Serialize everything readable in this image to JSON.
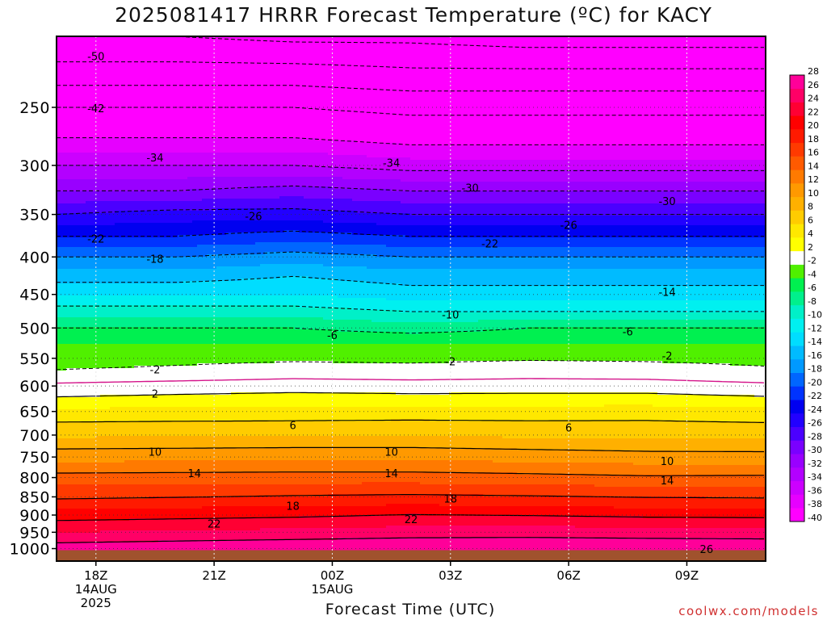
{
  "chart_data": {
    "type": "heatmap",
    "title": "2025081417 HRRR Forecast Temperature (ºC) for KACY",
    "xlabel": "Forecast Time (UTC)",
    "ylabel": "",
    "x_ticks": [
      {
        "hour": 0,
        "lines": [
          "18Z",
          "14AUG",
          "2025"
        ]
      },
      {
        "hour": 3,
        "lines": [
          "21Z"
        ]
      },
      {
        "hour": 6,
        "lines": [
          "00Z",
          "15AUG"
        ]
      },
      {
        "hour": 9,
        "lines": [
          "03Z"
        ]
      },
      {
        "hour": 12,
        "lines": [
          "06Z"
        ]
      },
      {
        "hour": 15,
        "lines": [
          "09Z"
        ]
      }
    ],
    "x_range_hours": [
      -1,
      17
    ],
    "pressure_ticks": [
      250,
      300,
      350,
      400,
      450,
      500,
      550,
      600,
      650,
      700,
      750,
      800,
      850,
      900,
      950,
      1000
    ],
    "pressure_range": [
      200,
      1040
    ],
    "levels_hpa": [
      200,
      225,
      250,
      275,
      300,
      325,
      350,
      375,
      400,
      425,
      450,
      475,
      500,
      525,
      550,
      575,
      600,
      625,
      650,
      675,
      700,
      725,
      750,
      775,
      800,
      825,
      850,
      875,
      900,
      925,
      950,
      975,
      1000,
      1013
    ],
    "times_hours": [
      -1,
      2,
      5,
      8,
      11,
      14,
      17
    ],
    "temperature_c": [
      [
        -54,
        -54,
        -55,
        -55,
        -56,
        -56,
        -56
      ],
      [
        -48,
        -48,
        -48,
        -49,
        -49,
        -49,
        -49
      ],
      [
        -42,
        -42,
        -42,
        -43,
        -43,
        -43,
        -43
      ],
      [
        -38,
        -38,
        -38,
        -39,
        -39,
        -39,
        -39
      ],
      [
        -34,
        -34,
        -34,
        -35,
        -35,
        -35,
        -35
      ],
      [
        -30,
        -30,
        -29,
        -30,
        -30,
        -30,
        -30
      ],
      [
        -26,
        -25,
        -25,
        -26,
        -26,
        -26,
        -26
      ],
      [
        -22,
        -22,
        -21,
        -22,
        -22,
        -22,
        -22
      ],
      [
        -18,
        -18,
        -17,
        -18,
        -18,
        -18,
        -18
      ],
      [
        -15,
        -15,
        -14,
        -15,
        -15,
        -15,
        -15
      ],
      [
        -12,
        -12,
        -12,
        -13,
        -13,
        -13,
        -13
      ],
      [
        -9,
        -9,
        -9,
        -10,
        -10,
        -10,
        -10
      ],
      [
        -6,
        -6,
        -6,
        -7,
        -6,
        -6,
        -6
      ],
      [
        -4,
        -4,
        -4,
        -4,
        -4,
        -4,
        -4
      ],
      [
        -2.8,
        -2.5,
        -2.3,
        -2.4,
        -2.2,
        -2.3,
        -2.5
      ],
      [
        -1.8,
        -1.5,
        -1.0,
        -1.2,
        -0.8,
        -1.0,
        -1.6
      ],
      [
        0.5,
        0.9,
        1.2,
        1.0,
        1.0,
        1.0,
        0.5
      ],
      [
        2.3,
        2.6,
        2.8,
        2.7,
        2.8,
        2.8,
        2.4
      ],
      [
        4.5,
        4.7,
        5.0,
        5.0,
        5.0,
        5.1,
        4.8
      ],
      [
        6.2,
        6.3,
        6.3,
        6.4,
        6.3,
        6.3,
        6.1
      ],
      [
        7.6,
        7.7,
        7.8,
        7.8,
        7.6,
        7.6,
        7.5
      ],
      [
        9.6,
        9.7,
        9.8,
        9.8,
        9.5,
        9.3,
        9.1
      ],
      [
        11.2,
        11.3,
        11.4,
        11.5,
        11.2,
        10.8,
        10.9
      ],
      [
        13.0,
        13.1,
        13.2,
        13.2,
        12.9,
        12.6,
        12.6
      ],
      [
        14.8,
        14.9,
        15.0,
        15.0,
        14.7,
        14.3,
        14.4
      ],
      [
        16.4,
        16.6,
        16.7,
        16.8,
        16.5,
        16.2,
        16.2
      ],
      [
        17.6,
        17.9,
        18.2,
        18.4,
        18.2,
        17.9,
        17.8
      ],
      [
        19.4,
        19.7,
        20.0,
        20.3,
        20.0,
        19.6,
        19.4
      ],
      [
        21.0,
        21.3,
        21.6,
        22.1,
        21.9,
        21.6,
        21.5
      ],
      [
        22.6,
        22.9,
        23.2,
        23.6,
        23.6,
        23.3,
        23.2
      ],
      [
        24.0,
        24.3,
        24.6,
        25.0,
        25.0,
        24.9,
        24.8
      ],
      [
        25.6,
        25.9,
        26.2,
        26.5,
        26.6,
        26.4,
        26.3
      ],
      [
        27.0,
        27.4,
        27.8,
        28.0,
        28.0,
        27.9,
        27.7
      ],
      [
        27.6,
        28.0,
        28.4,
        28.6,
        28.6,
        28.5,
        28.3
      ]
    ],
    "surface_pressure_hpa": 1005,
    "surface_color": "#a0522d",
    "contour_levels": [
      -54,
      -50,
      -46,
      -42,
      -38,
      -34,
      -30,
      -26,
      -22,
      -18,
      -14,
      -10,
      -6,
      -2,
      0,
      2,
      6,
      10,
      14,
      18,
      22,
      26
    ],
    "contour_labels": [
      {
        "v": "-50",
        "hour": 0,
        "p": 213
      },
      {
        "v": "-42",
        "hour": 0,
        "p": 251
      },
      {
        "v": "-34",
        "hour": 1.5,
        "p": 293
      },
      {
        "v": "-34",
        "hour": 7.5,
        "p": 298
      },
      {
        "v": "-30",
        "hour": 9.5,
        "p": 322
      },
      {
        "v": "-30",
        "hour": 14.5,
        "p": 336
      },
      {
        "v": "-26",
        "hour": 4,
        "p": 352
      },
      {
        "v": "-26",
        "hour": 12,
        "p": 362
      },
      {
        "v": "-22",
        "hour": 0,
        "p": 378
      },
      {
        "v": "-22",
        "hour": 10,
        "p": 384
      },
      {
        "v": "-18",
        "hour": 1.5,
        "p": 403
      },
      {
        "v": "-14",
        "hour": 14.5,
        "p": 447
      },
      {
        "v": "-10",
        "hour": 9,
        "p": 480
      },
      {
        "v": "-6",
        "hour": 6,
        "p": 512
      },
      {
        "v": "-6",
        "hour": 13.5,
        "p": 506
      },
      {
        "v": "-2",
        "hour": 9,
        "p": 556
      },
      {
        "v": "-2",
        "hour": 14.5,
        "p": 546
      },
      {
        "v": "-2",
        "hour": 1.5,
        "p": 570
      },
      {
        "v": "2",
        "hour": 1.5,
        "p": 615
      },
      {
        "v": "6",
        "hour": 5,
        "p": 679
      },
      {
        "v": "6",
        "hour": 12,
        "p": 684
      },
      {
        "v": "10",
        "hour": 1.5,
        "p": 738
      },
      {
        "v": "10",
        "hour": 7.5,
        "p": 738
      },
      {
        "v": "10",
        "hour": 14.5,
        "p": 760
      },
      {
        "v": "14",
        "hour": 2.5,
        "p": 790
      },
      {
        "v": "14",
        "hour": 7.5,
        "p": 790
      },
      {
        "v": "14",
        "hour": 14.5,
        "p": 808
      },
      {
        "v": "18",
        "hour": 5,
        "p": 875
      },
      {
        "v": "18",
        "hour": 9,
        "p": 856
      },
      {
        "v": "22",
        "hour": 3,
        "p": 925
      },
      {
        "v": "22",
        "hour": 8,
        "p": 913
      },
      {
        "v": "26",
        "hour": 15.5,
        "p": 1002
      }
    ],
    "colorbar": {
      "labels": [
        "-40",
        "-38",
        "-36",
        "-34",
        "-32",
        "-30",
        "-28",
        "-26",
        "-24",
        "-22",
        "-20",
        "-18",
        "-16",
        "-14",
        "-12",
        "-10",
        "-8",
        "-6",
        "-4",
        "-2",
        "2",
        "4",
        "6",
        "8",
        "10",
        "12",
        "14",
        "16",
        "18",
        "20",
        "22",
        "24",
        "26",
        "28"
      ],
      "colors": [
        "#ff00ff",
        "#e600ff",
        "#cc00ff",
        "#b300ff",
        "#9900ff",
        "#7a00ff",
        "#4b00ff",
        "#2200ff",
        "#0000f0",
        "#0033ff",
        "#0066ff",
        "#0099ff",
        "#00bbff",
        "#00ddff",
        "#00f0f0",
        "#00f0c8",
        "#00f08c",
        "#00f050",
        "#50f000",
        "#ffffff",
        "#ffff00",
        "#ffe800",
        "#ffcc00",
        "#ffb000",
        "#ff9900",
        "#ff7a00",
        "#ff5a00",
        "#ff3a00",
        "#ff1a00",
        "#ff0000",
        "#ff0033",
        "#ff0066",
        "#ff0099"
      ]
    }
  },
  "credit": "coolwx.com/models"
}
